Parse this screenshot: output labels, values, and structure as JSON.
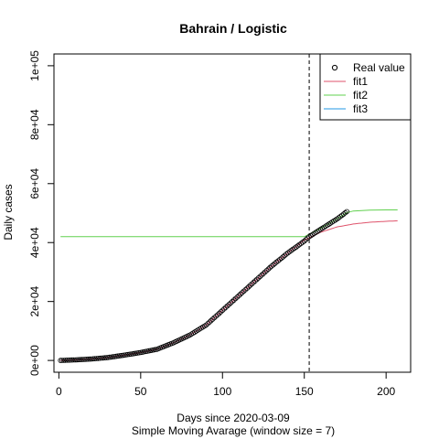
{
  "chart_data": {
    "type": "line",
    "title": "Bahrain / Logistic",
    "xlabel": "Days since 2020-03-09",
    "subtitle": "Simple Moving Avarage (window size = 7)",
    "ylabel": "Daily cases",
    "xlim": [
      -3,
      215
    ],
    "ylim": [
      -4000,
      104000
    ],
    "xticks": [
      0,
      50,
      100,
      150,
      200
    ],
    "xtick_labels": [
      "0",
      "50",
      "100",
      "150",
      "200"
    ],
    "yticks": [
      0,
      20000,
      40000,
      60000,
      80000,
      100000
    ],
    "ytick_labels": [
      "0e+00",
      "2e+04",
      "4e+04",
      "6e+04",
      "8e+04",
      "1e+05"
    ],
    "vline_x": 153,
    "legend": {
      "position": "top-right",
      "entries": [
        {
          "label": "Real value",
          "kind": "point",
          "color": "#000000"
        },
        {
          "label": "fit1",
          "kind": "line",
          "color": "#DF536B"
        },
        {
          "label": "fit2",
          "kind": "line",
          "color": "#61D04F"
        },
        {
          "label": "fit3",
          "kind": "line",
          "color": "#2297E6"
        }
      ]
    },
    "real_value": {
      "x_start": 1,
      "x_end": 176,
      "anchors_x": [
        1,
        10,
        20,
        30,
        40,
        50,
        60,
        70,
        80,
        90,
        100,
        110,
        120,
        130,
        140,
        150,
        153,
        160,
        170,
        176
      ],
      "anchors_y": [
        0,
        200,
        500,
        1000,
        1800,
        2700,
        3800,
        6000,
        8600,
        12000,
        17000,
        22000,
        27000,
        32000,
        36500,
        40500,
        42000,
        44500,
        48000,
        50500
      ],
      "color": "#000000"
    },
    "fit1": {
      "x_start": 1,
      "x_end": 207,
      "anchors_x": [
        1,
        10,
        20,
        30,
        40,
        50,
        60,
        70,
        80,
        90,
        100,
        110,
        120,
        130,
        140,
        150,
        160,
        170,
        180,
        190,
        200,
        207
      ],
      "anchors_y": [
        0,
        200,
        500,
        1000,
        1800,
        2700,
        3800,
        6000,
        8600,
        12000,
        17000,
        22000,
        27000,
        32000,
        36500,
        40800,
        43500,
        45300,
        46300,
        46900,
        47200,
        47400
      ],
      "color": "#DF536B"
    },
    "fit2": {
      "anchors_x": [
        1,
        150,
        160,
        170,
        176,
        180,
        190,
        200,
        207
      ],
      "anchors_y": [
        42000,
        42000,
        44800,
        48000,
        50200,
        50700,
        51000,
        51100,
        51100
      ],
      "color": "#61D04F"
    },
    "fit3": {
      "anchors_x": [
        1,
        10,
        20,
        30,
        40,
        50,
        60,
        70,
        80,
        90,
        100,
        110,
        120,
        130,
        140,
        150
      ],
      "anchors_y": [
        0,
        200,
        500,
        1000,
        1800,
        2700,
        3800,
        6000,
        8600,
        12000,
        17000,
        22000,
        27000,
        32000,
        36500,
        40800
      ],
      "color": "#2297E6"
    }
  }
}
